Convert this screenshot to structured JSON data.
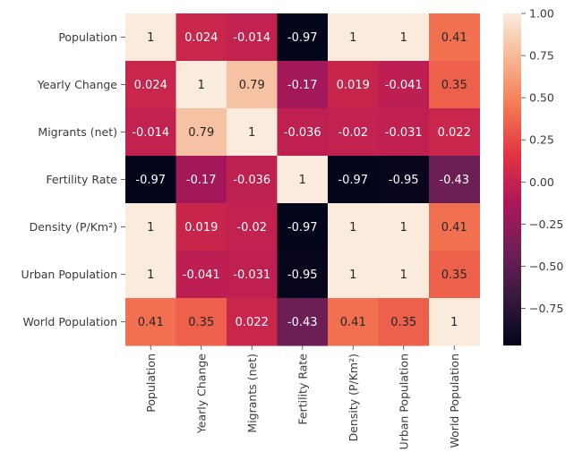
{
  "chart_data": {
    "type": "heatmap",
    "title": "",
    "xlabel": "",
    "ylabel": "",
    "labels": [
      "Population",
      "Yearly Change",
      "Migrants (net)",
      "Fertility Rate",
      "Density (P/Km²)",
      "Urban Population",
      "World Population"
    ],
    "matrix": [
      [
        1,
        0.024,
        -0.014,
        -0.97,
        1,
        1,
        0.41
      ],
      [
        0.024,
        1,
        0.79,
        -0.17,
        0.019,
        -0.041,
        0.35
      ],
      [
        -0.014,
        0.79,
        1,
        -0.036,
        -0.02,
        -0.031,
        0.022
      ],
      [
        -0.97,
        -0.17,
        -0.036,
        1,
        -0.97,
        -0.95,
        -0.43
      ],
      [
        1,
        0.019,
        -0.02,
        -0.97,
        1,
        1,
        0.41
      ],
      [
        1,
        -0.041,
        -0.031,
        -0.95,
        1,
        1,
        0.35
      ],
      [
        0.41,
        0.35,
        0.022,
        -0.43,
        0.41,
        0.35,
        1
      ]
    ],
    "annotations": [
      [
        "1",
        "0.024",
        "-0.014",
        "-0.97",
        "1",
        "1",
        "0.41"
      ],
      [
        "0.024",
        "1",
        "0.79",
        "-0.17",
        "0.019",
        "-0.041",
        "0.35"
      ],
      [
        "-0.014",
        "0.79",
        "1",
        "-0.036",
        "-0.02",
        "-0.031",
        "0.022"
      ],
      [
        "-0.97",
        "-0.17",
        "-0.036",
        "1",
        "-0.97",
        "-0.95",
        "-0.43"
      ],
      [
        "1",
        "0.019",
        "-0.02",
        "-0.97",
        "1",
        "1",
        "0.41"
      ],
      [
        "1",
        "-0.041",
        "-0.031",
        "-0.95",
        "1",
        "1",
        "0.35"
      ],
      [
        "0.41",
        "0.35",
        "0.022",
        "-0.43",
        "0.41",
        "0.35",
        "1"
      ]
    ],
    "colorbar": {
      "min": -0.97,
      "max": 1,
      "ticks": [
        1.0,
        0.75,
        0.5,
        0.25,
        0.0,
        -0.25,
        -0.5,
        -0.75
      ],
      "tick_labels": [
        "1.00",
        "0.75",
        "0.50",
        "0.25",
        "0.00",
        "−0.25",
        "−0.50",
        "−0.75"
      ]
    },
    "colormap": "rocket",
    "colormap_stops": [
      "#03051a",
      "#36193e",
      "#701f57",
      "#ad1759",
      "#e13342",
      "#f37651",
      "#f6b48f",
      "#faebdd"
    ],
    "legend": "colorbar-right",
    "grid": false
  }
}
